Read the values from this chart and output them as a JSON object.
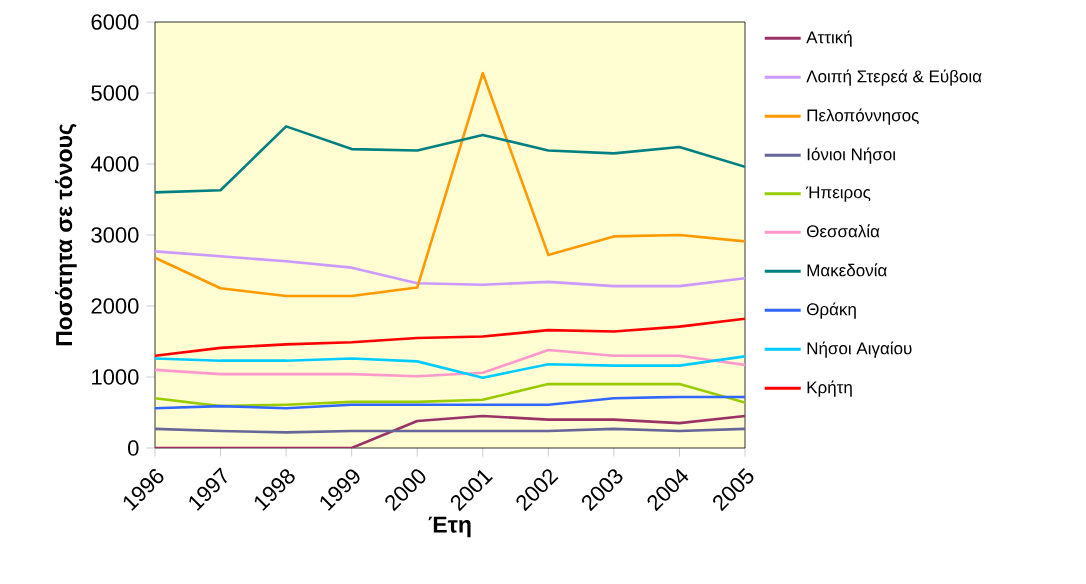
{
  "chart_data": {
    "type": "line",
    "xlabel": "Έτη",
    "ylabel": "Ποσότητα σε τόνους",
    "categories": [
      "1996",
      "1997",
      "1998",
      "1999",
      "2000",
      "2001",
      "2002",
      "2003",
      "2004",
      "2005"
    ],
    "ylim": [
      0,
      6000
    ],
    "yticks": [
      0,
      1000,
      2000,
      3000,
      4000,
      5000,
      6000
    ],
    "grid": false,
    "legend": "right",
    "marker": "none",
    "line_style": "solid",
    "series": [
      {
        "name": "Αττική",
        "color": "#993366",
        "values": [
          0,
          0,
          0,
          0,
          380,
          450,
          400,
          400,
          350,
          450
        ]
      },
      {
        "name": "Λοιπή Στερεά & Εύβοια",
        "color": "#cc99ff",
        "values": [
          2770,
          2700,
          2630,
          2540,
          2320,
          2300,
          2340,
          2280,
          2280,
          2390
        ]
      },
      {
        "name": "Πελοπόννησος",
        "color": "#ff9900",
        "values": [
          2680,
          2250,
          2140,
          2140,
          2260,
          5280,
          2720,
          2980,
          3000,
          2910
        ]
      },
      {
        "name": "Ιόνιοι  Νήσοι",
        "color": "#666699",
        "values": [
          270,
          240,
          220,
          240,
          240,
          240,
          240,
          270,
          240,
          270
        ]
      },
      {
        "name": "Ήπειρος",
        "color": "#99cc00",
        "values": [
          700,
          590,
          610,
          650,
          650,
          680,
          900,
          900,
          900,
          640
        ]
      },
      {
        "name": "Θεσσαλία",
        "color": "#ff99cc",
        "values": [
          1100,
          1040,
          1040,
          1040,
          1010,
          1060,
          1380,
          1300,
          1300,
          1170
        ]
      },
      {
        "name": "Μακεδονία",
        "color": "#008080",
        "values": [
          3600,
          3630,
          4530,
          4210,
          4190,
          4410,
          4190,
          4150,
          4240,
          3960
        ]
      },
      {
        "name": "Θράκη",
        "color": "#3366ff",
        "values": [
          560,
          590,
          560,
          610,
          610,
          610,
          610,
          700,
          720,
          720
        ]
      },
      {
        "name": "Νήσοι Αιγαίου",
        "color": "#00ccff",
        "values": [
          1260,
          1230,
          1230,
          1260,
          1220,
          990,
          1180,
          1160,
          1160,
          1290
        ]
      },
      {
        "name": "Κρήτη",
        "color": "#ff0000",
        "values": [
          1300,
          1410,
          1460,
          1490,
          1550,
          1570,
          1660,
          1640,
          1710,
          1820
        ]
      }
    ]
  }
}
